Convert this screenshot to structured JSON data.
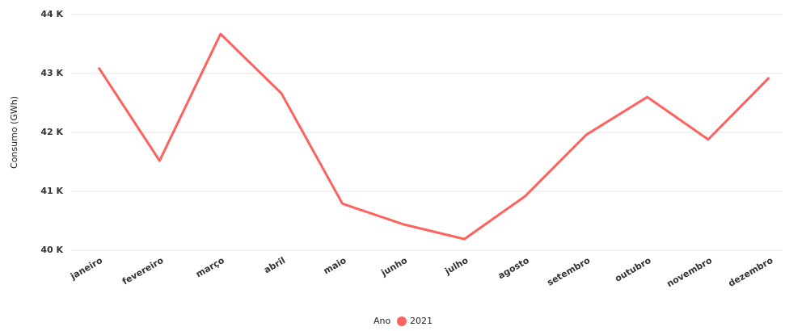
{
  "chart_data": {
    "type": "line",
    "y_label": "Consumo (GWh)",
    "legend_title": "Ano",
    "categories": [
      "janeiro",
      "fevereiro",
      "março",
      "abril",
      "maio",
      "junho",
      "julho",
      "agosto",
      "setembro",
      "outubro",
      "novembro",
      "dezembro"
    ],
    "series": [
      {
        "name": "2021",
        "color": "#fd625e",
        "values": [
          43100,
          41520,
          43670,
          42660,
          40790,
          40440,
          40190,
          40920,
          41960,
          42600,
          41880,
          42930
        ]
      }
    ],
    "ylim": [
      40000,
      44000
    ],
    "yticks": [
      {
        "value": 40000,
        "label": "40 K"
      },
      {
        "value": 41000,
        "label": "41 K"
      },
      {
        "value": 42000,
        "label": "42 K"
      },
      {
        "value": 43000,
        "label": "43 K"
      },
      {
        "value": 44000,
        "label": "44 K"
      }
    ],
    "grid": true,
    "legend_position": "bottom"
  }
}
